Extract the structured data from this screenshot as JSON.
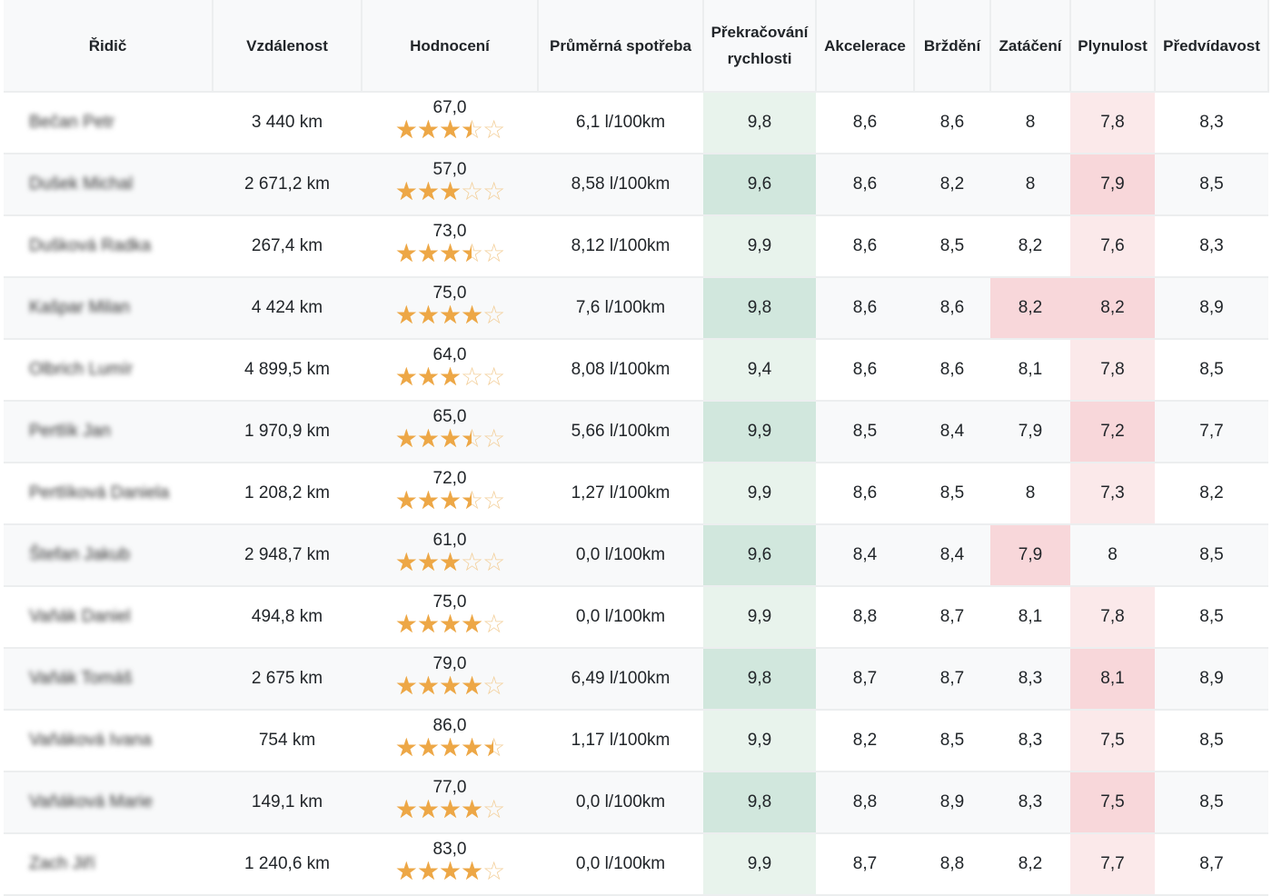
{
  "colors": {
    "star": "#eda746",
    "good": "#d1e7dd",
    "bad": "#f8d7da"
  },
  "headers": [
    "Řidič",
    "Vzdálenost",
    "Hodnocení",
    "Průměrná spotřeba",
    "Překračování rychlosti",
    "Akcelerace",
    "Brždění",
    "Zatáčení",
    "Plynulost",
    "Předvídavost"
  ],
  "rows": [
    {
      "name": "Bečan Petr",
      "distance": "3 440 km",
      "rating": "67,0",
      "stars": 3.5,
      "consumption": "6,1 l/100km",
      "speeding": "9,8",
      "accel": "8,6",
      "braking": "8,6",
      "turning": "8",
      "smooth": "7,8",
      "predict": "8,3",
      "turning_bad": false,
      "smooth_bad": true
    },
    {
      "name": "Dušek Michal",
      "distance": "2 671,2 km",
      "rating": "57,0",
      "stars": 3,
      "consumption": "8,58 l/100km",
      "speeding": "9,6",
      "accel": "8,6",
      "braking": "8,2",
      "turning": "8",
      "smooth": "7,9",
      "predict": "8,5",
      "turning_bad": false,
      "smooth_bad": true
    },
    {
      "name": "Dušková Radka",
      "distance": "267,4 km",
      "rating": "73,0",
      "stars": 3.5,
      "consumption": "8,12 l/100km",
      "speeding": "9,9",
      "accel": "8,6",
      "braking": "8,5",
      "turning": "8,2",
      "smooth": "7,6",
      "predict": "8,3",
      "turning_bad": false,
      "smooth_bad": true
    },
    {
      "name": "Kašpar Milan",
      "distance": "4 424 km",
      "rating": "75,0",
      "stars": 4,
      "consumption": "7,6 l/100km",
      "speeding": "9,8",
      "accel": "8,6",
      "braking": "8,6",
      "turning": "8,2",
      "smooth": "8,2",
      "predict": "8,9",
      "turning_bad": true,
      "smooth_bad": true
    },
    {
      "name": "Olbrich Lumír",
      "distance": "4 899,5 km",
      "rating": "64,0",
      "stars": 3,
      "consumption": "8,08 l/100km",
      "speeding": "9,4",
      "accel": "8,6",
      "braking": "8,6",
      "turning": "8,1",
      "smooth": "7,8",
      "predict": "8,5",
      "turning_bad": false,
      "smooth_bad": true
    },
    {
      "name": "Pertlík Jan",
      "distance": "1 970,9 km",
      "rating": "65,0",
      "stars": 3.5,
      "consumption": "5,66 l/100km",
      "speeding": "9,9",
      "accel": "8,5",
      "braking": "8,4",
      "turning": "7,9",
      "smooth": "7,2",
      "predict": "7,7",
      "turning_bad": false,
      "smooth_bad": true
    },
    {
      "name": "Pertlíková Daniela",
      "distance": "1 208,2 km",
      "rating": "72,0",
      "stars": 3.5,
      "consumption": "1,27 l/100km",
      "speeding": "9,9",
      "accel": "8,6",
      "braking": "8,5",
      "turning": "8",
      "smooth": "7,3",
      "predict": "8,2",
      "turning_bad": false,
      "smooth_bad": true
    },
    {
      "name": "Štefan Jakub",
      "distance": "2 948,7 km",
      "rating": "61,0",
      "stars": 3,
      "consumption": "0,0 l/100km",
      "speeding": "9,6",
      "accel": "8,4",
      "braking": "8,4",
      "turning": "7,9",
      "smooth": "8",
      "predict": "8,5",
      "turning_bad": true,
      "smooth_bad": false
    },
    {
      "name": "Vaňák Daniel",
      "distance": "494,8 km",
      "rating": "75,0",
      "stars": 4,
      "consumption": "0,0 l/100km",
      "speeding": "9,9",
      "accel": "8,8",
      "braking": "8,7",
      "turning": "8,1",
      "smooth": "7,8",
      "predict": "8,5",
      "turning_bad": false,
      "smooth_bad": true
    },
    {
      "name": "Vaňák Tomáš",
      "distance": "2 675 km",
      "rating": "79,0",
      "stars": 4,
      "consumption": "6,49 l/100km",
      "speeding": "9,8",
      "accel": "8,7",
      "braking": "8,7",
      "turning": "8,3",
      "smooth": "8,1",
      "predict": "8,9",
      "turning_bad": false,
      "smooth_bad": true
    },
    {
      "name": "Vaňáková Ivana",
      "distance": "754 km",
      "rating": "86,0",
      "stars": 4.5,
      "consumption": "1,17 l/100km",
      "speeding": "9,9",
      "accel": "8,2",
      "braking": "8,5",
      "turning": "8,3",
      "smooth": "7,5",
      "predict": "8,5",
      "turning_bad": false,
      "smooth_bad": true
    },
    {
      "name": "Vaňáková Marie",
      "distance": "149,1 km",
      "rating": "77,0",
      "stars": 4,
      "consumption": "0,0 l/100km",
      "speeding": "9,8",
      "accel": "8,8",
      "braking": "8,9",
      "turning": "8,3",
      "smooth": "7,5",
      "predict": "8,5",
      "turning_bad": false,
      "smooth_bad": true
    },
    {
      "name": "Zach Jiří",
      "distance": "1 240,6 km",
      "rating": "83,0",
      "stars": 4,
      "consumption": "0,0 l/100km",
      "speeding": "9,9",
      "accel": "8,7",
      "braking": "8,8",
      "turning": "8,2",
      "smooth": "7,7",
      "predict": "8,7",
      "turning_bad": false,
      "smooth_bad": true
    }
  ]
}
